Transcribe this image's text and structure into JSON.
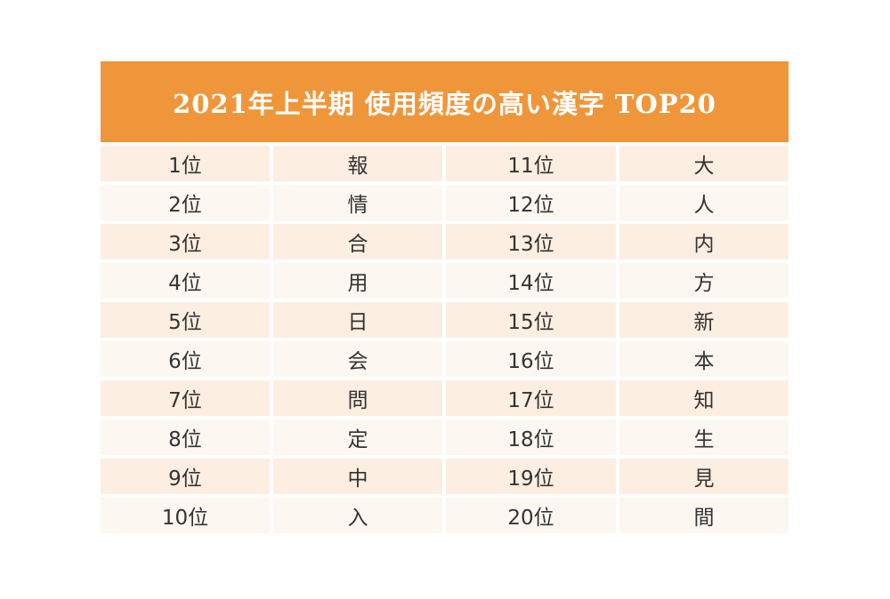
{
  "title": "2021年上半期 使用頻度の高い漢字 TOP20",
  "rows": [
    {
      "rank_left": "1位",
      "kanji_left": "報",
      "rank_right": "11位",
      "kanji_right": "大"
    },
    {
      "rank_left": "2位",
      "kanji_left": "情",
      "rank_right": "12位",
      "kanji_right": "人"
    },
    {
      "rank_left": "3位",
      "kanji_left": "合",
      "rank_right": "13位",
      "kanji_right": "内"
    },
    {
      "rank_left": "4位",
      "kanji_left": "用",
      "rank_right": "14位",
      "kanji_right": "方"
    },
    {
      "rank_left": "5位",
      "kanji_left": "日",
      "rank_right": "15位",
      "kanji_right": "新"
    },
    {
      "rank_left": "6位",
      "kanji_left": "会",
      "rank_right": "16位",
      "kanji_right": "本"
    },
    {
      "rank_left": "7位",
      "kanji_left": "問",
      "rank_right": "17位",
      "kanji_right": "知"
    },
    {
      "rank_left": "8位",
      "kanji_left": "定",
      "rank_right": "18位",
      "kanji_right": "生"
    },
    {
      "rank_left": "9位",
      "kanji_left": "中",
      "rank_right": "19位",
      "kanji_right": "見"
    },
    {
      "rank_left": "10位",
      "kanji_left": "入",
      "rank_right": "20位",
      "kanji_right": "間"
    }
  ],
  "colors": {
    "header_bg": "#f0963a",
    "row_odd_bg": "#fdeee2",
    "row_even_bg": "#fdf7f1"
  }
}
